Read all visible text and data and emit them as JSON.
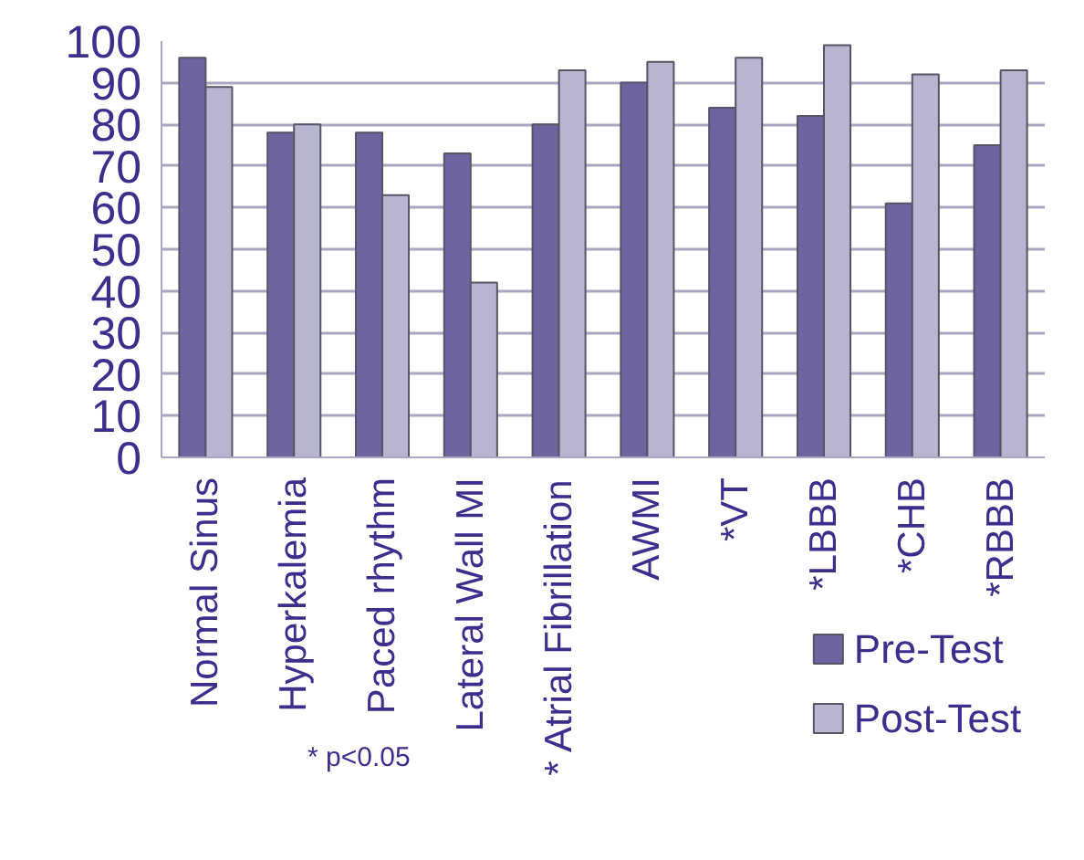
{
  "chart_data": {
    "type": "bar",
    "categories": [
      "Normal Sinus",
      "Hyperkalemia",
      "Paced rhythm",
      "Lateral Wall MI",
      "* Atrial Fibrillation",
      "AWMI",
      "*VT",
      "*LBBB",
      "*CHB",
      "*RBBB"
    ],
    "series": [
      {
        "name": "Pre-Test",
        "color": "#6f64a0",
        "values": [
          96,
          78,
          78,
          73,
          80,
          90,
          84,
          82,
          61,
          75
        ]
      },
      {
        "name": "Post-Test",
        "color": "#b8b5d0",
        "values": [
          89,
          80,
          63,
          42,
          93,
          95,
          96,
          99,
          92,
          93
        ]
      }
    ],
    "ylim": [
      0,
      100
    ],
    "yticks": [
      0,
      10,
      20,
      30,
      40,
      50,
      60,
      70,
      80,
      90,
      100
    ],
    "grid": "y",
    "legend": "bottom right",
    "annotations": [
      "* p<0.05"
    ]
  }
}
